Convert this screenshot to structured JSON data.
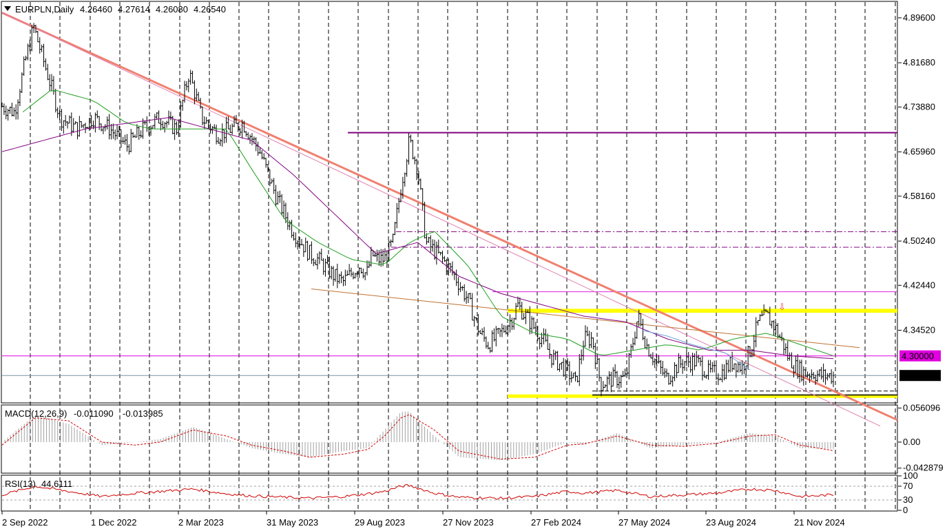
{
  "header": {
    "symbol": "EURPLN,Daily",
    "open": "4.26460",
    "high": "4.27614",
    "low": "4.26080",
    "close": "4.26540"
  },
  "macd": {
    "label": "MACD(12,26,9)",
    "value1": "-0.011090",
    "value2": "-0.013985"
  },
  "rsi": {
    "label": "RSI(13)",
    "value": "44.6111"
  },
  "chart_data": [
    {
      "type": "candlestick",
      "title": "EURPLN,Daily",
      "x_tick_labels": [
        "2 Sep 2022",
        "1 Dec 2022",
        "2 Mar 2023",
        "31 May 2023",
        "29 Aug 2023",
        "27 Nov 2023",
        "27 Feb 2024",
        "27 May 2024",
        "23 Aug 2024",
        "21 Nov 2024"
      ],
      "y_tick_labels": [
        "4.89600",
        "4.81680",
        "4.73880",
        "4.65960",
        "4.58160",
        "4.50240",
        "4.42440",
        "4.34520"
      ],
      "ylim": [
        4.2183,
        4.9238
      ],
      "grid": "vertical dashed",
      "marked_levels": [
        {
          "label": "4.30000",
          "value": 4.3,
          "color": "#e000e0"
        },
        {
          "label": "4.26540",
          "value": 4.2654,
          "color": "#000000"
        }
      ],
      "horizontal_lines": [
        {
          "value": 4.6935,
          "color": "#800080",
          "style": "solid"
        },
        {
          "value": 4.519,
          "color": "#800080",
          "style": "dashdot"
        },
        {
          "value": 4.4915,
          "color": "#800080",
          "style": "dashdot"
        },
        {
          "value": 4.413,
          "color": "#e020e0",
          "style": "thin"
        }
      ],
      "highlight_bands": [
        {
          "from": 4.376,
          "to": 4.383,
          "color": "#ffff00"
        },
        {
          "from": 4.226,
          "to": 4.232,
          "color": "#ffff00"
        }
      ],
      "trendlines": [
        {
          "x": [
            0,
            0.825
          ],
          "y": [
            4.905,
            4.355
          ],
          "color": "#f08070",
          "width": 3
        },
        {
          "x": [
            0.0,
            0.732
          ],
          "y": [
            4.905,
            4.4
          ],
          "color": "#e080b0",
          "width": 1
        },
        {
          "x": [
            0.372,
            0.716
          ],
          "y": [
            4.418,
            4.364
          ],
          "color": "#c07030",
          "width": 1
        }
      ],
      "series": [
        {
          "name": "EURPLN",
          "style": "bars",
          "color": "#000000",
          "keypoints_x": [
            0,
            0.015,
            0.028,
            0.038,
            0.05,
            0.07,
            0.09,
            0.11,
            0.13,
            0.15,
            0.17,
            0.19,
            0.21,
            0.225,
            0.24,
            0.26,
            0.29,
            0.31,
            0.33,
            0.35,
            0.37,
            0.38,
            0.4,
            0.41,
            0.43,
            0.436,
            0.438,
            0.445,
            0.45,
            0.46,
            0.47,
            0.48,
            0.49,
            0.5,
            0.51,
            0.53,
            0.545,
            0.56,
            0.575,
            0.585,
            0.6,
            0.615,
            0.62,
            0.64,
            0.65,
            0.66,
            0.675,
            0.687,
            0.69,
            0.7,
            0.71,
            0.72,
            0.735,
            0.75,
            0.765,
            0.775,
            0.79,
            0.8,
            0.81,
            0.82,
            0.835,
            0.85,
            0.865,
            0.88,
            0.89,
            0.9,
            0.91,
            0.92,
            0.93,
            0.94,
            0.945,
            0.955,
            0.965,
            0.975,
            0.985,
            1.0
          ],
          "keypoints_y": [
            4.74,
            4.73,
            4.82,
            4.88,
            4.82,
            4.72,
            4.7,
            4.72,
            4.7,
            4.67,
            4.7,
            4.72,
            4.7,
            4.8,
            4.72,
            4.69,
            4.71,
            4.66,
            4.58,
            4.52,
            4.48,
            4.47,
            4.44,
            4.43,
            4.46,
            4.45,
            4.44,
            4.48,
            4.47,
            4.47,
            4.5,
            4.6,
            4.68,
            4.63,
            4.5,
            4.47,
            4.44,
            4.4,
            4.34,
            4.32,
            4.34,
            4.37,
            4.39,
            4.35,
            4.33,
            4.3,
            4.28,
            4.26,
            4.25,
            4.33,
            4.33,
            4.25,
            4.26,
            4.26,
            4.37,
            4.32,
            4.28,
            4.26,
            4.28,
            4.29,
            4.29,
            4.27,
            4.27,
            4.29,
            4.28,
            4.31,
            4.36,
            4.37,
            4.35,
            4.32,
            4.3,
            4.28,
            4.27,
            4.27,
            4.265,
            4.265
          ]
        },
        {
          "name": "MA fast",
          "style": "line",
          "color": "#20a020",
          "keypoints_x": [
            0.025,
            0.06,
            0.11,
            0.15,
            0.18,
            0.22,
            0.27,
            0.3,
            0.34,
            0.38,
            0.42,
            0.46,
            0.49,
            0.52,
            0.56,
            0.6,
            0.64,
            0.68,
            0.72,
            0.76,
            0.8,
            0.84,
            0.88,
            0.92,
            0.96,
            1.0
          ],
          "keypoints_y": [
            4.73,
            4.77,
            4.75,
            4.71,
            4.7,
            4.7,
            4.7,
            4.63,
            4.54,
            4.5,
            4.47,
            4.46,
            4.5,
            4.52,
            4.46,
            4.37,
            4.34,
            4.33,
            4.3,
            4.31,
            4.32,
            4.31,
            4.33,
            4.34,
            4.32,
            4.3
          ]
        },
        {
          "name": "MA slow",
          "style": "line",
          "color": "#800080",
          "keypoints_x": [
            0,
            0.05,
            0.1,
            0.15,
            0.2,
            0.25,
            0.3,
            0.35,
            0.4,
            0.45,
            0.5,
            0.55,
            0.6,
            0.65,
            0.7,
            0.75,
            0.8,
            0.85,
            0.9,
            0.95,
            1.0
          ],
          "keypoints_y": [
            4.66,
            4.68,
            4.7,
            4.71,
            4.72,
            4.7,
            4.68,
            4.62,
            4.55,
            4.48,
            4.5,
            4.44,
            4.41,
            4.39,
            4.37,
            4.36,
            4.33,
            4.31,
            4.31,
            4.3,
            4.295
          ]
        },
        {
          "name": "MA light",
          "style": "line",
          "color": "#70a0e0",
          "keypoints_x": [
            0.77,
            0.8,
            0.83,
            0.87,
            0.9
          ],
          "keypoints_y": [
            4.345,
            4.335,
            4.32,
            4.305,
            4.275
          ]
        }
      ]
    },
    {
      "type": "bar",
      "title": "MACD(12,26,9) -0.011090 -0.013985",
      "y_tick_labels": [
        "0.056096",
        "0.00",
        "-0.042879"
      ],
      "ylim": [
        -0.05,
        0.06
      ],
      "series": [
        {
          "name": "histogram",
          "style": "bars",
          "color": "#a0a0a0",
          "keypoints_x": [
            0,
            0.04,
            0.08,
            0.12,
            0.16,
            0.19,
            0.23,
            0.27,
            0.3,
            0.34,
            0.37,
            0.41,
            0.44,
            0.46,
            0.48,
            0.49,
            0.52,
            0.55,
            0.6,
            0.64,
            0.68,
            0.7,
            0.74,
            0.78,
            0.82,
            0.86,
            0.9,
            0.93,
            0.96,
            1.0
          ],
          "keypoints_y": [
            0.0,
            0.045,
            0.03,
            -0.005,
            0.0,
            0.005,
            0.025,
            0.005,
            -0.01,
            -0.02,
            -0.025,
            -0.015,
            -0.01,
            0.02,
            0.05,
            0.05,
            0.01,
            -0.025,
            -0.03,
            -0.02,
            0.0,
            -0.005,
            0.015,
            -0.01,
            -0.005,
            0.0,
            0.015,
            0.01,
            -0.01,
            -0.011
          ]
        },
        {
          "name": "signal",
          "style": "line",
          "color": "#d00000",
          "keypoints_x": [
            0,
            0.04,
            0.08,
            0.12,
            0.16,
            0.19,
            0.23,
            0.27,
            0.3,
            0.34,
            0.37,
            0.41,
            0.44,
            0.46,
            0.48,
            0.49,
            0.52,
            0.55,
            0.6,
            0.64,
            0.68,
            0.7,
            0.74,
            0.78,
            0.82,
            0.86,
            0.9,
            0.93,
            0.96,
            1.0
          ],
          "keypoints_y": [
            -0.005,
            0.04,
            0.035,
            0.0,
            -0.005,
            0.0,
            0.02,
            0.01,
            -0.005,
            -0.015,
            -0.025,
            -0.02,
            -0.012,
            0.01,
            0.04,
            0.045,
            0.02,
            -0.015,
            -0.028,
            -0.025,
            -0.005,
            -0.003,
            0.01,
            -0.005,
            -0.007,
            -0.002,
            0.01,
            0.012,
            -0.005,
            -0.014
          ]
        }
      ]
    },
    {
      "type": "line",
      "title": "RSI(13) 44.6111",
      "y_tick_labels": [
        "100",
        "70",
        "30",
        "0"
      ],
      "ylim": [
        0,
        100
      ],
      "series": [
        {
          "name": "RSI",
          "style": "line",
          "color": "#d00000",
          "keypoints_x": [
            0,
            0.04,
            0.08,
            0.12,
            0.16,
            0.19,
            0.23,
            0.27,
            0.3,
            0.34,
            0.37,
            0.41,
            0.44,
            0.46,
            0.48,
            0.49,
            0.52,
            0.55,
            0.6,
            0.64,
            0.68,
            0.7,
            0.74,
            0.78,
            0.82,
            0.86,
            0.9,
            0.93,
            0.96,
            1.0
          ],
          "keypoints_y": [
            45,
            70,
            55,
            40,
            50,
            55,
            62,
            48,
            42,
            38,
            35,
            40,
            48,
            55,
            70,
            72,
            50,
            38,
            35,
            40,
            55,
            50,
            58,
            40,
            45,
            50,
            62,
            58,
            40,
            45
          ]
        }
      ]
    }
  ]
}
